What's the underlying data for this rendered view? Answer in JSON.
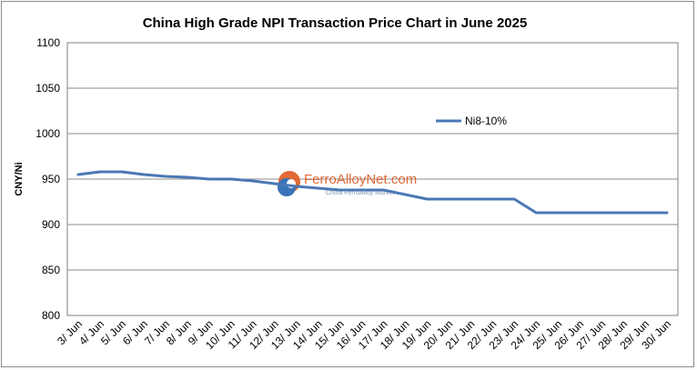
{
  "chart_data": {
    "type": "line",
    "title": "China High Grade NPI Transaction Price Chart in June 2025",
    "ylabel": "CNY/Ni",
    "xlabel": "",
    "ylim": [
      800,
      1100
    ],
    "yticks": [
      800,
      850,
      900,
      950,
      1000,
      1050,
      1100
    ],
    "grid": true,
    "legend_position": "top-right",
    "categories": [
      "3/ Jun",
      "4/ Jun",
      "5/ Jun",
      "6/ Jun",
      "7/ Jun",
      "8/ Jun",
      "9/ Jun",
      "10/ Jun",
      "11/ Jun",
      "12/ Jun",
      "13/ Jun",
      "14/ Jun",
      "15/ Jun",
      "16/ Jun",
      "17/ Jun",
      "18/ Jun",
      "19/ Jun",
      "20/ Jun",
      "21/ Jun",
      "22/ Jun",
      "23/ Jun",
      "24/ Jun",
      "25/ Jun",
      "26/ Jun",
      "27/ Jun",
      "28/ Jun",
      "29/ Jun",
      "30/ Jun"
    ],
    "series": [
      {
        "name": "Ni8-10%",
        "color": "#4a78b5",
        "values": [
          955,
          958,
          958,
          955,
          953,
          952,
          950,
          950,
          948,
          945,
          942,
          940,
          938,
          938,
          938,
          933,
          928,
          928,
          928,
          928,
          928,
          913,
          913,
          913,
          913,
          913,
          913,
          913
        ]
      }
    ]
  },
  "watermark": {
    "text": "FerroAlloyNet.com",
    "subtext": "China FerroAlloy Market"
  }
}
